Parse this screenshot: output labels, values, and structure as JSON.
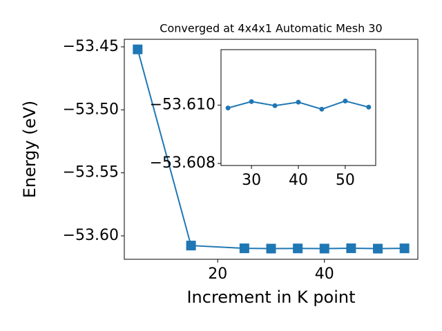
{
  "chart_data": [
    {
      "type": "line",
      "title": "Converged at 4x4x1 Automatic Mesh 30",
      "x_label": "Increment in K point",
      "y_label": "Energy (eV)",
      "x": [
        5,
        15,
        25,
        30,
        35,
        40,
        45,
        50,
        55
      ],
      "series": [
        {
          "color": "#1f77b4",
          "marker": "square",
          "values": [
            -53.452,
            -53.6077,
            -53.6099,
            -53.61012,
            -53.60998,
            -53.6101,
            -53.60986,
            -53.61014,
            -53.60993
          ]
        }
      ],
      "xlim": [
        2.5,
        57.5
      ],
      "xticks": [
        20,
        40
      ],
      "ylim": [
        -53.6186,
        -53.444
      ],
      "yticks": [
        {
          "value": -53.45,
          "label": "−53.45"
        },
        {
          "value": -53.5,
          "label": "−53.50"
        },
        {
          "value": -53.55,
          "label": "−53.55"
        },
        {
          "value": -53.6,
          "label": "−53.60"
        }
      ]
    },
    {
      "type": "line",
      "x": [
        25,
        30,
        35,
        40,
        45,
        50,
        55
      ],
      "series": [
        {
          "color": "#1f77b4",
          "marker": "circle",
          "values": [
            -53.6099,
            -53.61012,
            -53.60998,
            -53.6101,
            -53.60986,
            -53.61014,
            -53.60993
          ]
        }
      ],
      "xlim": [
        23.5,
        56.5
      ],
      "xticks": [
        30,
        40,
        50
      ],
      "ylim": [
        -53.60793,
        -53.6119
      ],
      "yticks": [
        {
          "value": -53.61,
          "label": "−53.610"
        },
        {
          "value": -53.608,
          "label": "−53.608"
        }
      ]
    }
  ]
}
